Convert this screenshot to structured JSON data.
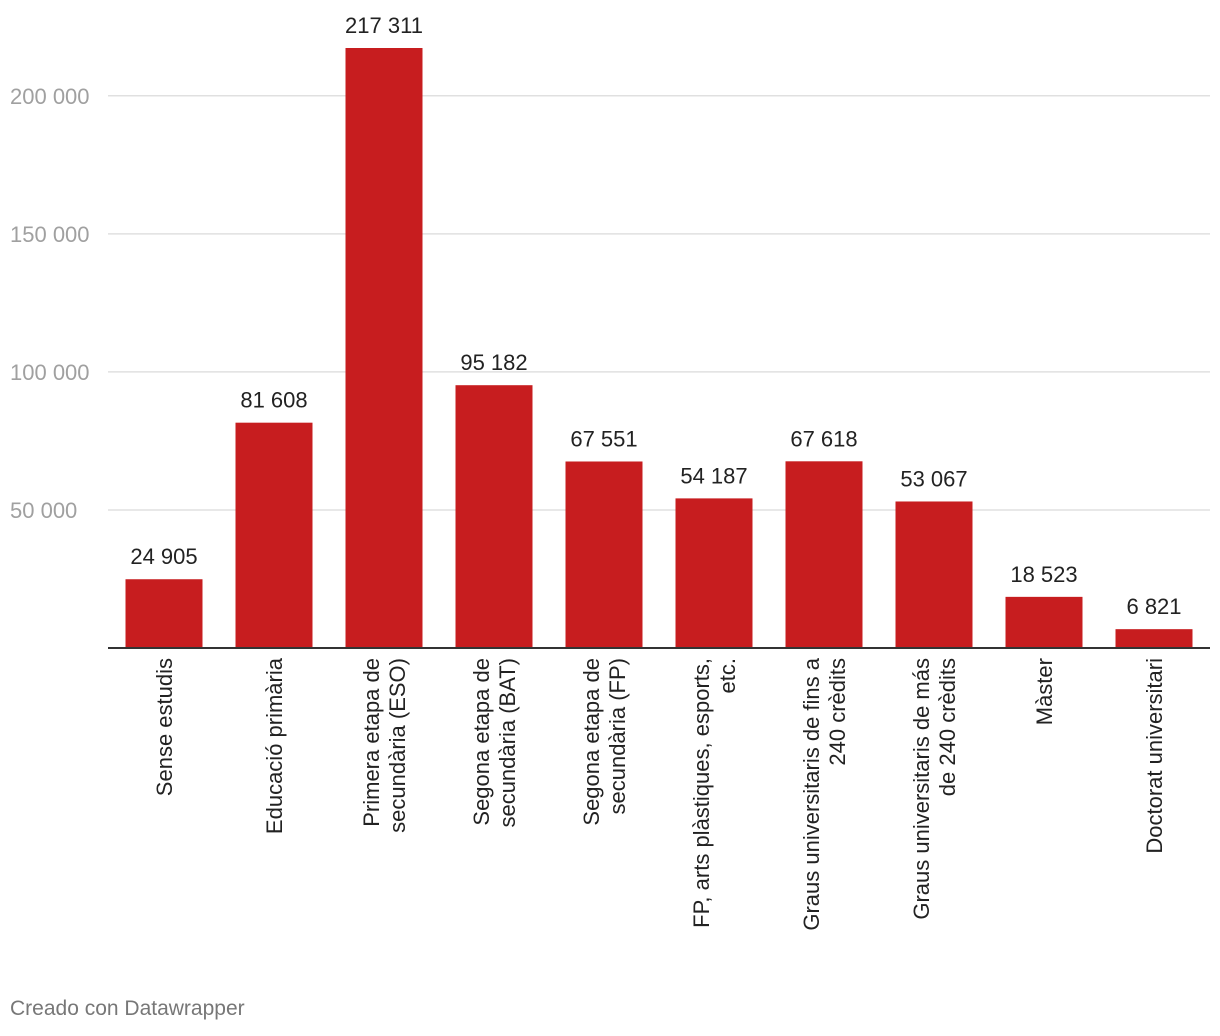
{
  "chart_data": {
    "type": "bar",
    "title": "",
    "xlabel": "",
    "ylabel": "",
    "ylim": [
      0,
      217311
    ],
    "yticks": [
      50000,
      100000,
      150000,
      200000
    ],
    "ytick_labels": [
      "50 000",
      "100 000",
      "150 000",
      "200 000"
    ],
    "grid": true,
    "categories": [
      [
        "Sense estudis"
      ],
      [
        "Educació primària"
      ],
      [
        "Primera etapa de",
        "secundària (ESO)"
      ],
      [
        "Segona etapa de",
        "secundària (BAT)"
      ],
      [
        "Segona etapa de",
        "secundària (FP)"
      ],
      [
        "FP, arts plàstiques, esports,",
        "etc."
      ],
      [
        "Graus universitaris de fins a",
        "240 crèdits"
      ],
      [
        "Graus universitaris de más",
        "de 240 crèdits"
      ],
      [
        "Màster"
      ],
      [
        "Doctorat universitari"
      ]
    ],
    "values": [
      24905,
      81608,
      217311,
      95182,
      67551,
      54187,
      67618,
      53067,
      18523,
      6821
    ],
    "value_labels": [
      "24 905",
      "81 608",
      "217 311",
      "95 182",
      "67 551",
      "54 187",
      "67 618",
      "53 067",
      "18 523",
      "6 821"
    ]
  },
  "colors": {
    "bar": "#c71d1f",
    "grid": "#e0e0e0",
    "axis": "#333333"
  },
  "footer": {
    "credit": "Creado con Datawrapper"
  }
}
